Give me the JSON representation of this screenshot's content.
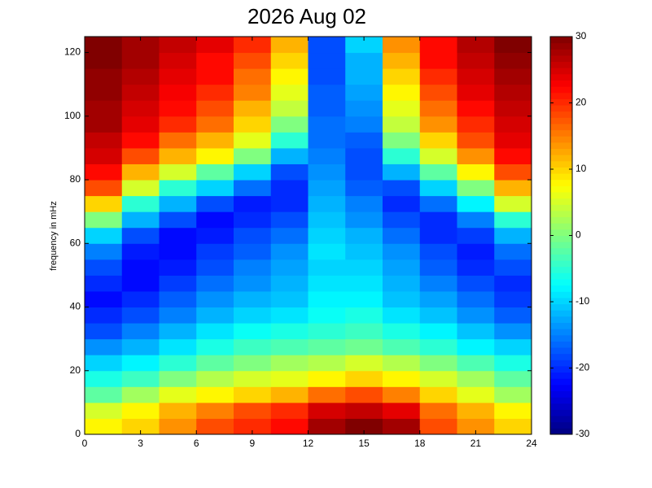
{
  "chart_data": {
    "type": "heatmap",
    "title": "2026 Aug 02",
    "y_label": "frequency in mHz",
    "x_edges": [
      0,
      2,
      4,
      6,
      8,
      10,
      12,
      14,
      16,
      18,
      20,
      22,
      24
    ],
    "y_edges": [
      0,
      5,
      10,
      15,
      20,
      25,
      30,
      35,
      40,
      45,
      50,
      55,
      60,
      65,
      70,
      75,
      80,
      85,
      90,
      95,
      100,
      105,
      110,
      115,
      120,
      125
    ],
    "z": [
      [
        8,
        10,
        14,
        18,
        20,
        22,
        28,
        30,
        28,
        18,
        14,
        10
      ],
      [
        5,
        8,
        12,
        15,
        18,
        20,
        25,
        26,
        24,
        16,
        12,
        8
      ],
      [
        -2,
        2,
        6,
        8,
        10,
        12,
        16,
        18,
        15,
        10,
        6,
        2
      ],
      [
        -6,
        -4,
        0,
        3,
        5,
        6,
        8,
        10,
        8,
        5,
        2,
        -2
      ],
      [
        -10,
        -8,
        -5,
        -2,
        0,
        2,
        3,
        5,
        3,
        0,
        -3,
        -6
      ],
      [
        -14,
        -12,
        -9,
        -6,
        -4,
        -3,
        -2,
        -1,
        -3,
        -5,
        -8,
        -10
      ],
      [
        -18,
        -15,
        -12,
        -9,
        -7,
        -6,
        -5,
        -4,
        -6,
        -8,
        -11,
        -14
      ],
      [
        -20,
        -18,
        -15,
        -12,
        -10,
        -9,
        -7,
        -6,
        -9,
        -11,
        -14,
        -17
      ],
      [
        -22,
        -20,
        -17,
        -14,
        -12,
        -11,
        -8,
        -8,
        -11,
        -13,
        -16,
        -19
      ],
      [
        -20,
        -22,
        -19,
        -16,
        -14,
        -12,
        -9,
        -9,
        -12,
        -15,
        -18,
        -20
      ],
      [
        -18,
        -22,
        -21,
        -18,
        -15,
        -13,
        -10,
        -10,
        -13,
        -17,
        -20,
        -18
      ],
      [
        -15,
        -21,
        -22,
        -19,
        -17,
        -14,
        -9,
        -11,
        -14,
        -18,
        -21,
        -16
      ],
      [
        -10,
        -18,
        -22,
        -21,
        -18,
        -16,
        -10,
        -12,
        -16,
        -20,
        -19,
        -12
      ],
      [
        0,
        -12,
        -18,
        -22,
        -20,
        -18,
        -11,
        -14,
        -18,
        -20,
        -15,
        -5
      ],
      [
        10,
        -5,
        -12,
        -18,
        -21,
        -20,
        -12,
        -15,
        -20,
        -16,
        -8,
        5
      ],
      [
        18,
        5,
        -5,
        -10,
        -16,
        -20,
        -13,
        -17,
        -18,
        -10,
        0,
        12
      ],
      [
        22,
        12,
        5,
        -2,
        -10,
        -18,
        -14,
        -18,
        -12,
        -2,
        8,
        18
      ],
      [
        25,
        18,
        12,
        8,
        0,
        -12,
        -15,
        -18,
        -5,
        5,
        14,
        22
      ],
      [
        26,
        22,
        16,
        12,
        6,
        -5,
        -16,
        -17,
        0,
        10,
        18,
        24
      ],
      [
        28,
        24,
        20,
        16,
        10,
        0,
        -16,
        -15,
        4,
        14,
        20,
        25
      ],
      [
        28,
        25,
        22,
        18,
        12,
        4,
        -17,
        -14,
        6,
        16,
        22,
        26
      ],
      [
        29,
        26,
        23,
        20,
        15,
        6,
        -17,
        -13,
        8,
        18,
        24,
        27
      ],
      [
        29,
        27,
        24,
        22,
        16,
        8,
        -18,
        -12,
        10,
        20,
        25,
        28
      ],
      [
        30,
        28,
        25,
        22,
        18,
        10,
        -18,
        -12,
        12,
        22,
        26,
        29
      ],
      [
        30,
        28,
        26,
        24,
        20,
        12,
        -18,
        -10,
        14,
        22,
        27,
        30
      ]
    ],
    "xlim": [
      0,
      24
    ],
    "xticks": [
      0,
      3,
      6,
      9,
      12,
      15,
      18,
      21,
      24
    ],
    "ylim": [
      0,
      125
    ],
    "yticks": [
      0,
      20,
      40,
      60,
      80,
      100,
      120
    ],
    "clim": [
      -30,
      30
    ],
    "cticks": [
      -30,
      -20,
      -10,
      0,
      10,
      20,
      30
    ],
    "colormap": "jet"
  }
}
